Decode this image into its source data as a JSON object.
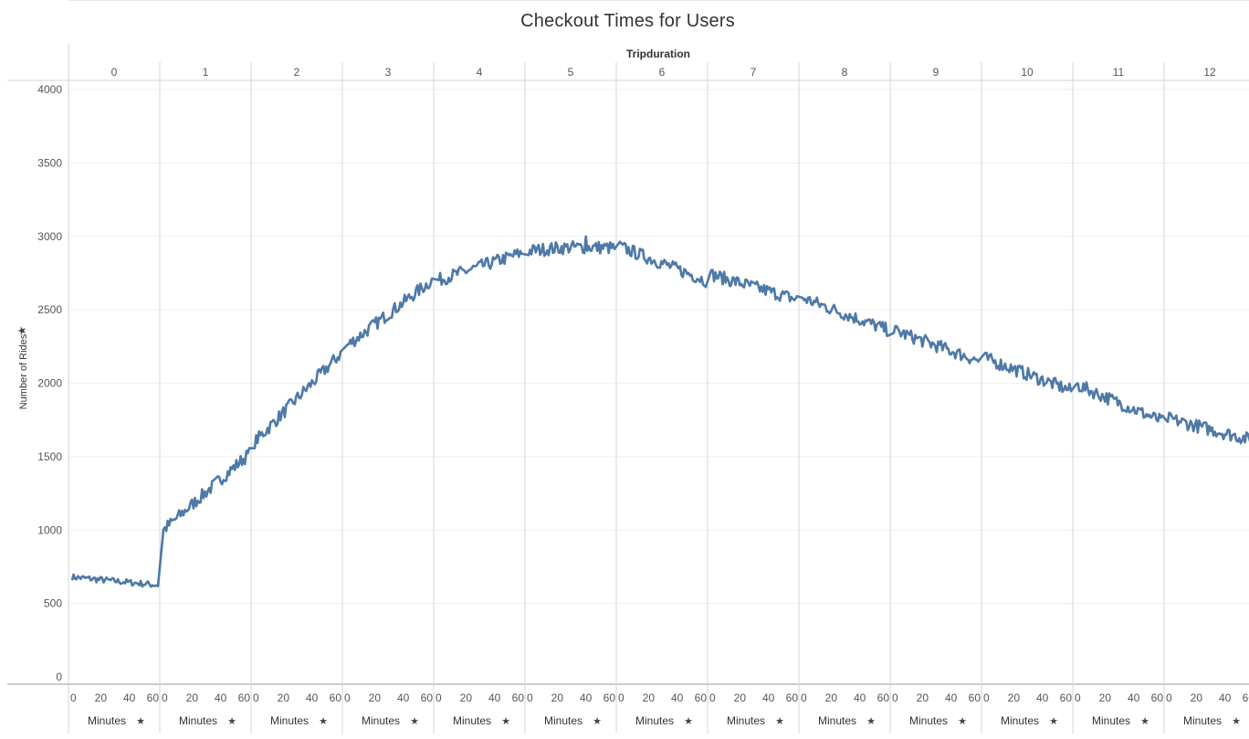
{
  "header": {
    "title": "Checkout Times for Users"
  },
  "chart_data": {
    "type": "line",
    "title": "Checkout Times for Users",
    "column_header_label": "Tripduration",
    "panels": [
      "0",
      "1",
      "2",
      "3",
      "4",
      "5",
      "6",
      "7",
      "8",
      "9",
      "10",
      "11",
      "12"
    ],
    "ylabel": "Number of Rides",
    "ylim": [
      0,
      4000
    ],
    "yticks": [
      "0",
      "500",
      "1000",
      "1500",
      "2000",
      "2500",
      "3000",
      "3500",
      "4000"
    ],
    "xlabel": "Minutes",
    "xticks": [
      "0",
      "20",
      "40",
      "60"
    ],
    "x_range_per_panel": [
      0,
      60
    ],
    "grid": true,
    "legend": "none",
    "line_color": "#4e79a7",
    "series": [
      {
        "panel_start_end": [
          [
            680,
            625
          ],
          [
            1000,
            1520
          ],
          [
            1600,
            2200
          ],
          [
            2250,
            2700
          ],
          [
            2700,
            2890
          ],
          [
            2900,
            2920
          ],
          [
            2930,
            2700
          ],
          [
            2740,
            2570
          ],
          [
            2580,
            2360
          ],
          [
            2360,
            2150
          ],
          [
            2170,
            1950
          ],
          [
            1990,
            1740
          ],
          [
            1760,
            1610
          ]
        ],
        "peak": {
          "panel": "5",
          "value": 3000
        }
      }
    ]
  }
}
